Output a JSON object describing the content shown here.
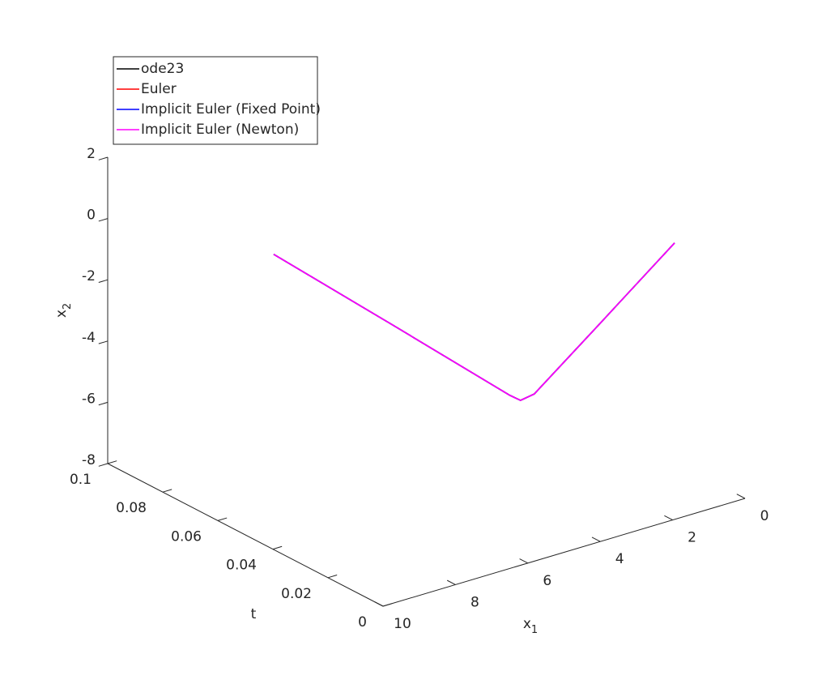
{
  "chart_data": {
    "type": "line3d",
    "tlabel": "t",
    "x1label": {
      "text": "x",
      "subscript": "1"
    },
    "x2label": {
      "text": "x",
      "subscript": "2"
    },
    "tlim": [
      0,
      0.1
    ],
    "tticks": [
      0,
      0.02,
      0.04,
      0.06,
      0.08,
      0.1
    ],
    "x1lim": [
      0,
      10
    ],
    "x1ticks": [
      0,
      2,
      4,
      6,
      8,
      10
    ],
    "x2lim": [
      -8,
      2
    ],
    "x2ticks": [
      -8,
      -6,
      -4,
      -2,
      0,
      2
    ],
    "legend": "top-left",
    "series": [
      {
        "name": "ode23",
        "color": "#000000",
        "t": [
          0,
          0.01,
          0.02,
          0.025,
          0.03,
          0.05,
          0.1
        ],
        "x1": [
          13.02,
          8.97,
          4.97,
          4.3,
          3.54,
          0.22,
          -5.66
        ],
        "x2": [
          4.55,
          0.35,
          -3.82,
          -4.45,
          -4.74,
          -4.56,
          -6.31
        ]
      },
      {
        "name": "Euler",
        "color": "#ff0000",
        "t": [
          0,
          0.01,
          0.02,
          0.025,
          0.03,
          0.05,
          0.1
        ],
        "x1": [
          13.02,
          8.97,
          4.97,
          4.3,
          3.54,
          0.22,
          -5.66
        ],
        "x2": [
          4.55,
          0.35,
          -3.82,
          -4.45,
          -4.74,
          -4.56,
          -6.31
        ]
      },
      {
        "name": "Implicit Euler (Fixed Point)",
        "color": "#0000ff",
        "t": [
          0,
          0.01,
          0.02,
          0.025,
          0.03,
          0.05,
          0.1
        ],
        "x1": [
          13.02,
          8.97,
          4.97,
          4.3,
          3.54,
          0.22,
          -5.66
        ],
        "x2": [
          4.55,
          0.35,
          -3.82,
          -4.45,
          -4.74,
          -4.56,
          -6.31
        ]
      },
      {
        "name": "Implicit Euler (Newton)",
        "color": "#ff00ff",
        "t": [
          0,
          0.01,
          0.02,
          0.025,
          0.03,
          0.05,
          0.1
        ],
        "x1": [
          13.02,
          8.97,
          4.97,
          4.3,
          3.54,
          0.22,
          -5.66
        ],
        "x2": [
          4.55,
          0.35,
          -3.82,
          -4.45,
          -4.74,
          -4.56,
          -6.31
        ]
      }
    ]
  }
}
